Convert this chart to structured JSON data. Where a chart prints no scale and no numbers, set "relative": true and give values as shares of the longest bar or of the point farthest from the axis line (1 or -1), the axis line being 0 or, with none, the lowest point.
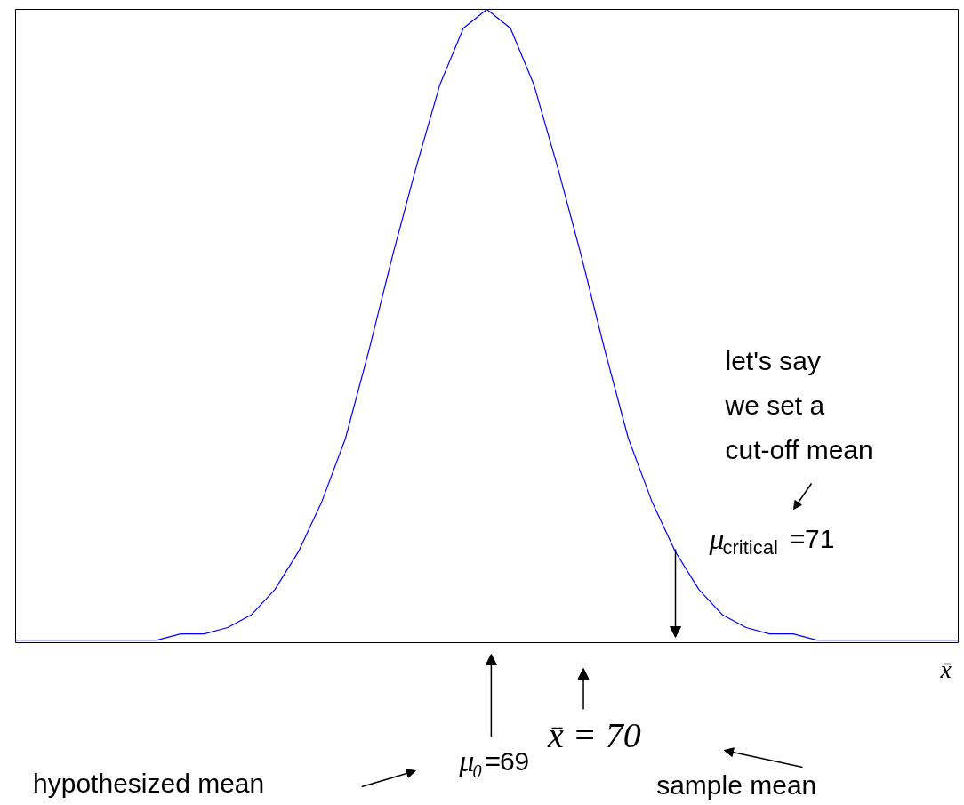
{
  "chart_data": {
    "type": "line",
    "relative": true,
    "xlabel": "x̄",
    "categories": [
      null,
      null,
      null,
      null,
      null,
      null,
      null,
      null,
      null,
      null,
      null,
      null,
      null,
      null,
      null,
      null,
      null,
      null,
      null,
      null,
      null,
      null,
      null,
      null,
      null,
      null,
      null,
      null,
      null,
      null,
      null,
      null,
      null,
      null,
      null,
      null,
      null,
      null,
      null,
      null,
      null
    ],
    "series": [
      {
        "color": "#0000ff",
        "values": [
          0,
          0,
          0,
          0,
          0,
          0,
          0,
          0.01,
          0.01,
          0.02,
          0.04,
          0.08,
          0.14,
          0.22,
          0.32,
          0.46,
          0.61,
          0.75,
          0.88,
          0.97,
          1,
          0.97,
          0.88,
          0.75,
          0.61,
          0.46,
          0.32,
          0.22,
          0.14,
          0.08,
          0.04,
          0.02,
          0.01,
          0.01,
          0,
          0,
          0,
          0,
          0,
          0,
          0
        ]
      }
    ],
    "line_style": "solid",
    "annotations": [
      "μ₀=69",
      "x̄ = 70",
      "μ$_{critical}$=71",
      "let's say\nwe set a\ncut-off mean",
      "hypothesized mean",
      "sample mean"
    ]
  }
}
